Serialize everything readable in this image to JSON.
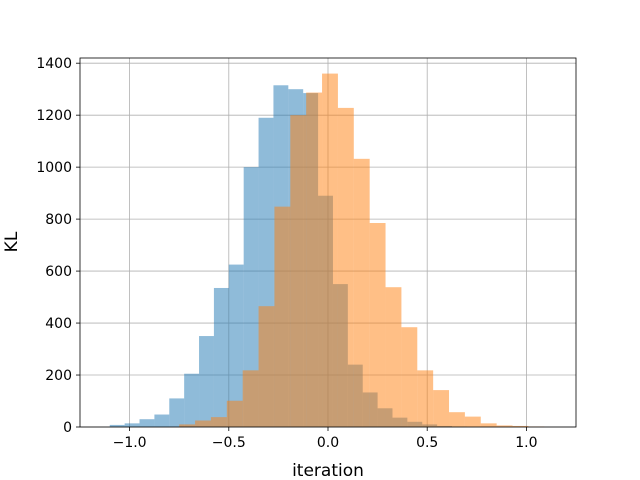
{
  "chart_data": {
    "type": "bar",
    "subtype": "overlapping-histogram",
    "title": "",
    "xlabel": "iteration",
    "ylabel": "KL",
    "xlim": [
      -1.25,
      1.25
    ],
    "ylim": [
      0,
      1420
    ],
    "xticks": [
      -1.0,
      -0.5,
      0.0,
      0.5,
      1.0
    ],
    "xtick_labels": [
      "−1.0",
      "−0.5",
      "0.0",
      "0.5",
      "1.0"
    ],
    "yticks": [
      0,
      200,
      400,
      600,
      800,
      1000,
      1200,
      1400
    ],
    "ytick_labels": [
      "0",
      "200",
      "400",
      "600",
      "800",
      "1000",
      "1200",
      "1400"
    ],
    "grid": true,
    "series": [
      {
        "color": "#1f77b4",
        "opacity": 0.5,
        "bin_edges": [
          -1.1,
          -1.025,
          -0.95,
          -0.875,
          -0.8,
          -0.725,
          -0.65,
          -0.575,
          -0.5,
          -0.425,
          -0.35,
          -0.275,
          -0.2,
          -0.125,
          -0.05,
          0.025,
          0.1,
          0.175,
          0.25,
          0.325,
          0.4,
          0.475,
          0.55,
          0.625,
          0.7
        ],
        "values": [
          8,
          14,
          30,
          48,
          110,
          205,
          350,
          535,
          625,
          1000,
          1190,
          1315,
          1300,
          1285,
          890,
          550,
          240,
          133,
          72,
          36,
          20,
          10,
          4,
          2
        ]
      },
      {
        "color": "#ff7f0e",
        "opacity": 0.5,
        "bin_edges": [
          -0.75,
          -0.67,
          -0.59,
          -0.51,
          -0.43,
          -0.35,
          -0.27,
          -0.19,
          -0.11,
          -0.03,
          0.05,
          0.13,
          0.21,
          0.29,
          0.37,
          0.45,
          0.53,
          0.61,
          0.69,
          0.77,
          0.85,
          0.93,
          1.01,
          1.09
        ],
        "values": [
          10,
          25,
          38,
          101,
          218,
          465,
          848,
          1200,
          1287,
          1360,
          1228,
          1032,
          785,
          538,
          384,
          218,
          142,
          57,
          40,
          14,
          6,
          4,
          2
        ]
      }
    ]
  }
}
